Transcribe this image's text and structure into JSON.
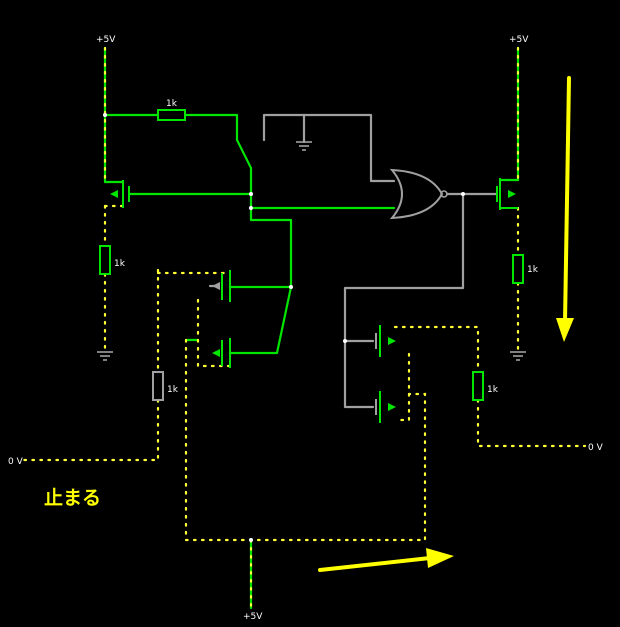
{
  "labels": {
    "vcc_top_left": "+5V",
    "vcc_top_right": "+5V",
    "vcc_bottom": "+5V",
    "gnd_left": "0 V",
    "gnd_right": "0 V",
    "r_top": "1k",
    "r_left": "1k",
    "r_mid_left": "1k",
    "r_right": "1k",
    "r_mid_right": "1k",
    "caption": "止まる"
  },
  "colors": {
    "background": "#000000",
    "wire_active": "#00e600",
    "wire_idle": "#a0a0a0",
    "current_dots": "#ffff33",
    "arrow": "#ffff00",
    "label": "#ffffff"
  },
  "icons": [
    "voltage-source-icon",
    "ground-icon",
    "resistor-icon",
    "switch-icon",
    "nor-gate-icon",
    "mosfet-icon",
    "arrow-icon"
  ]
}
